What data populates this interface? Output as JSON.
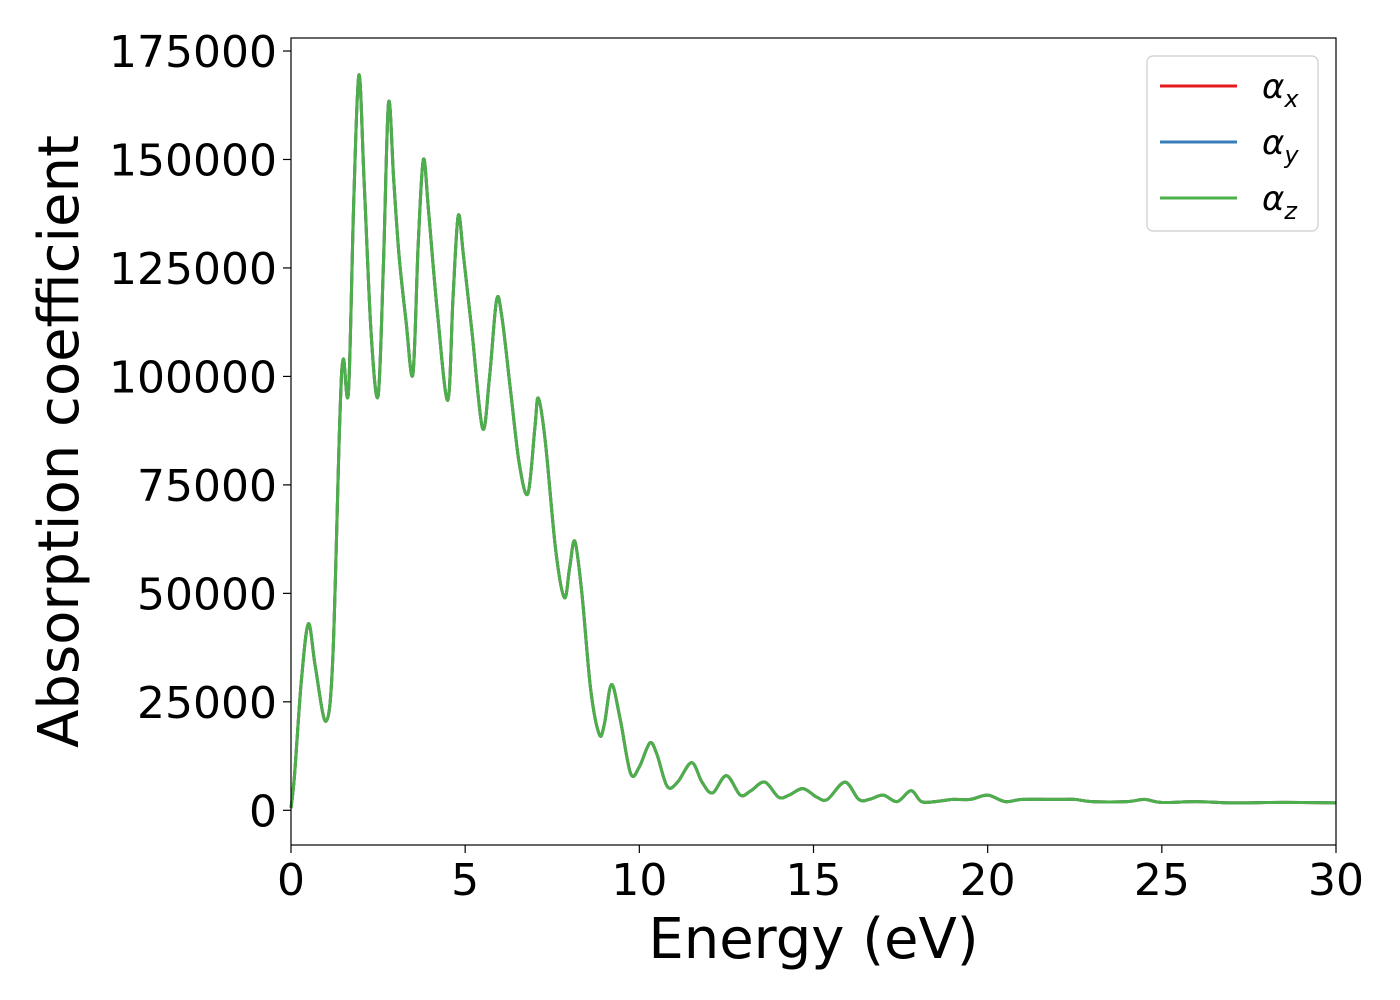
{
  "chart_data": {
    "type": "line",
    "title": "",
    "xlabel": "Energy (eV)",
    "ylabel": "Absorption coefficient",
    "xlim": [
      0,
      30
    ],
    "ylim": [
      -8000,
      178000
    ],
    "xticks": [
      "0",
      "5",
      "10",
      "15",
      "20",
      "25",
      "30"
    ],
    "yticks": [
      "0",
      "25000",
      "50000",
      "75000",
      "100000",
      "125000",
      "150000",
      "175000"
    ],
    "xtick_values": [
      0,
      5,
      10,
      15,
      20,
      25,
      30
    ],
    "ytick_values": [
      0,
      25000,
      50000,
      75000,
      100000,
      125000,
      150000,
      175000
    ],
    "grid": false,
    "legend_position": "top-right",
    "series": [
      {
        "name": "α_x",
        "symbol": "α",
        "subscript": "x",
        "color": "#e41a1c",
        "x": [
          0,
          0.1,
          0.3,
          0.5,
          0.7,
          1.0,
          1.2,
          1.4,
          1.5,
          1.65,
          1.8,
          1.95,
          2.1,
          2.3,
          2.5,
          2.65,
          2.8,
          2.95,
          3.1,
          3.3,
          3.5,
          3.65,
          3.8,
          3.95,
          4.2,
          4.5,
          4.65,
          4.8,
          4.95,
          5.2,
          5.5,
          5.7,
          5.9,
          6.05,
          6.3,
          6.55,
          6.8,
          7.0,
          7.1,
          7.3,
          7.6,
          7.85,
          8.0,
          8.15,
          8.35,
          8.6,
          8.85,
          9.0,
          9.2,
          9.45,
          9.75,
          10.0,
          10.3,
          10.5,
          10.8,
          11.1,
          11.5,
          11.8,
          12.1,
          12.5,
          12.9,
          13.2,
          13.6,
          14.0,
          14.3,
          14.7,
          15.1,
          15.4,
          15.9,
          16.3,
          16.6,
          17.0,
          17.4,
          17.8,
          18.1,
          18.5,
          19.0,
          19.5,
          20.0,
          20.5,
          21.0,
          22.0,
          22.5,
          23.0,
          24.0,
          24.5,
          25.0,
          26.0,
          27.0,
          28.0,
          29.0,
          30.0
        ],
        "y": [
          500,
          8000,
          30000,
          43000,
          33000,
          20500,
          35000,
          90000,
          104000,
          96500,
          140000,
          169500,
          145000,
          110000,
          95500,
          125000,
          163000,
          145000,
          128000,
          113000,
          100500,
          130000,
          150000,
          138000,
          115000,
          94500,
          118000,
          137000,
          128000,
          110000,
          88000,
          100000,
          117500,
          114000,
          97000,
          80000,
          73000,
          88000,
          95000,
          85000,
          60000,
          49000,
          56000,
          62000,
          50000,
          28000,
          17500,
          20000,
          29000,
          21000,
          8500,
          10000,
          15500,
          13000,
          5500,
          6500,
          11000,
          6500,
          4000,
          8000,
          3500,
          4500,
          6500,
          3000,
          3500,
          5000,
          3000,
          2500,
          6500,
          2500,
          2500,
          3500,
          2000,
          4500,
          2000,
          2000,
          2500,
          2500,
          3500,
          2000,
          2500,
          2500,
          2500,
          2000,
          2000,
          2500,
          1800,
          2000,
          1700,
          1800,
          1800,
          1700
        ]
      },
      {
        "name": "α_y",
        "symbol": "α",
        "subscript": "y",
        "color": "#377eb8",
        "x": [
          0,
          0.1,
          0.3,
          0.5,
          0.7,
          1.0,
          1.2,
          1.4,
          1.5,
          1.65,
          1.8,
          1.95,
          2.1,
          2.3,
          2.5,
          2.65,
          2.8,
          2.95,
          3.1,
          3.3,
          3.5,
          3.65,
          3.8,
          3.95,
          4.2,
          4.5,
          4.65,
          4.8,
          4.95,
          5.2,
          5.5,
          5.7,
          5.9,
          6.05,
          6.3,
          6.55,
          6.8,
          7.0,
          7.1,
          7.3,
          7.6,
          7.85,
          8.0,
          8.15,
          8.35,
          8.6,
          8.85,
          9.0,
          9.2,
          9.45,
          9.75,
          10.0,
          10.3,
          10.5,
          10.8,
          11.1,
          11.5,
          11.8,
          12.1,
          12.5,
          12.9,
          13.2,
          13.6,
          14.0,
          14.3,
          14.7,
          15.1,
          15.4,
          15.9,
          16.3,
          16.6,
          17.0,
          17.4,
          17.8,
          18.1,
          18.5,
          19.0,
          19.5,
          20.0,
          20.5,
          21.0,
          22.0,
          22.5,
          23.0,
          24.0,
          24.5,
          25.0,
          26.0,
          27.0,
          28.0,
          29.0,
          30.0
        ],
        "y": [
          500,
          8000,
          30000,
          43000,
          33000,
          20500,
          35000,
          90000,
          104000,
          96500,
          140000,
          169500,
          145000,
          110000,
          95500,
          125000,
          163000,
          145000,
          128000,
          113000,
          100500,
          130000,
          150000,
          138000,
          115000,
          94500,
          118000,
          137000,
          128000,
          110000,
          88000,
          100000,
          117500,
          114000,
          97000,
          80000,
          73000,
          88000,
          95000,
          85000,
          60000,
          49000,
          56000,
          62000,
          50000,
          28000,
          17500,
          20000,
          29000,
          21000,
          8500,
          10000,
          15500,
          13000,
          5500,
          6500,
          11000,
          6500,
          4000,
          8000,
          3500,
          4500,
          6500,
          3000,
          3500,
          5000,
          3000,
          2500,
          6500,
          2500,
          2500,
          3500,
          2000,
          4500,
          2000,
          2000,
          2500,
          2500,
          3500,
          2000,
          2500,
          2500,
          2500,
          2000,
          2000,
          2500,
          1800,
          2000,
          1700,
          1800,
          1800,
          1700
        ]
      },
      {
        "name": "α_z",
        "symbol": "α",
        "subscript": "z",
        "color": "#4daf4a",
        "x": [
          0,
          0.1,
          0.3,
          0.5,
          0.7,
          1.0,
          1.2,
          1.4,
          1.5,
          1.65,
          1.8,
          1.95,
          2.1,
          2.3,
          2.5,
          2.65,
          2.8,
          2.95,
          3.1,
          3.3,
          3.5,
          3.65,
          3.8,
          3.95,
          4.2,
          4.5,
          4.65,
          4.8,
          4.95,
          5.2,
          5.5,
          5.7,
          5.9,
          6.05,
          6.3,
          6.55,
          6.8,
          7.0,
          7.1,
          7.3,
          7.6,
          7.85,
          8.0,
          8.15,
          8.35,
          8.6,
          8.85,
          9.0,
          9.2,
          9.45,
          9.75,
          10.0,
          10.3,
          10.5,
          10.8,
          11.1,
          11.5,
          11.8,
          12.1,
          12.5,
          12.9,
          13.2,
          13.6,
          14.0,
          14.3,
          14.7,
          15.1,
          15.4,
          15.9,
          16.3,
          16.6,
          17.0,
          17.4,
          17.8,
          18.1,
          18.5,
          19.0,
          19.5,
          20.0,
          20.5,
          21.0,
          22.0,
          22.5,
          23.0,
          24.0,
          24.5,
          25.0,
          26.0,
          27.0,
          28.0,
          29.0,
          30.0
        ],
        "y": [
          500,
          8000,
          30000,
          43000,
          33000,
          20500,
          35000,
          90000,
          104000,
          96500,
          140000,
          169500,
          145000,
          110000,
          95500,
          125000,
          163000,
          145000,
          128000,
          113000,
          100500,
          130000,
          150000,
          138000,
          115000,
          94500,
          118000,
          137000,
          128000,
          110000,
          88000,
          100000,
          117500,
          114000,
          97000,
          80000,
          73000,
          88000,
          95000,
          85000,
          60000,
          49000,
          56000,
          62000,
          50000,
          28000,
          17500,
          20000,
          29000,
          21000,
          8500,
          10000,
          15500,
          13000,
          5500,
          6500,
          11000,
          6500,
          4000,
          8000,
          3500,
          4500,
          6500,
          3000,
          3500,
          5000,
          3000,
          2500,
          6500,
          2500,
          2500,
          3500,
          2000,
          4500,
          2000,
          2000,
          2500,
          2500,
          3500,
          2000,
          2500,
          2500,
          2500,
          2000,
          2000,
          2500,
          1800,
          2000,
          1700,
          1800,
          1800,
          1700
        ]
      }
    ]
  }
}
